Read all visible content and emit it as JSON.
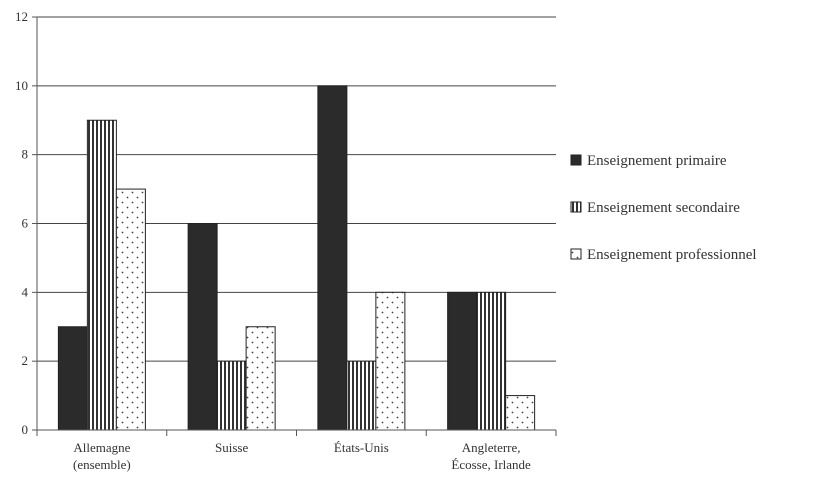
{
  "chart_data": {
    "type": "bar",
    "categories": [
      [
        "Allemagne",
        "(ensemble)"
      ],
      [
        "Suisse"
      ],
      [
        "États-Unis"
      ],
      [
        "Angleterre,",
        "Écosse, Irlande"
      ]
    ],
    "series": [
      {
        "name": "Enseignement primaire",
        "values": [
          3,
          6,
          10,
          4
        ],
        "pattern": "solid-dark"
      },
      {
        "name": "Enseignement secondaire",
        "values": [
          9,
          2,
          2,
          4
        ],
        "pattern": "vertical-stripes"
      },
      {
        "name": "Enseignement professionnel",
        "values": [
          7,
          3,
          4,
          1
        ],
        "pattern": "dots"
      }
    ],
    "ylim": [
      0,
      12
    ],
    "yticks": [
      "0",
      "2",
      "4",
      "6",
      "8",
      "10",
      "12"
    ],
    "grid": true,
    "legend_position": "right",
    "colors": {
      "primary_fill": "#2b2b2b",
      "stripe": "#333333",
      "dot": "#444444",
      "axis": "#555555",
      "grid": "#444444"
    }
  }
}
